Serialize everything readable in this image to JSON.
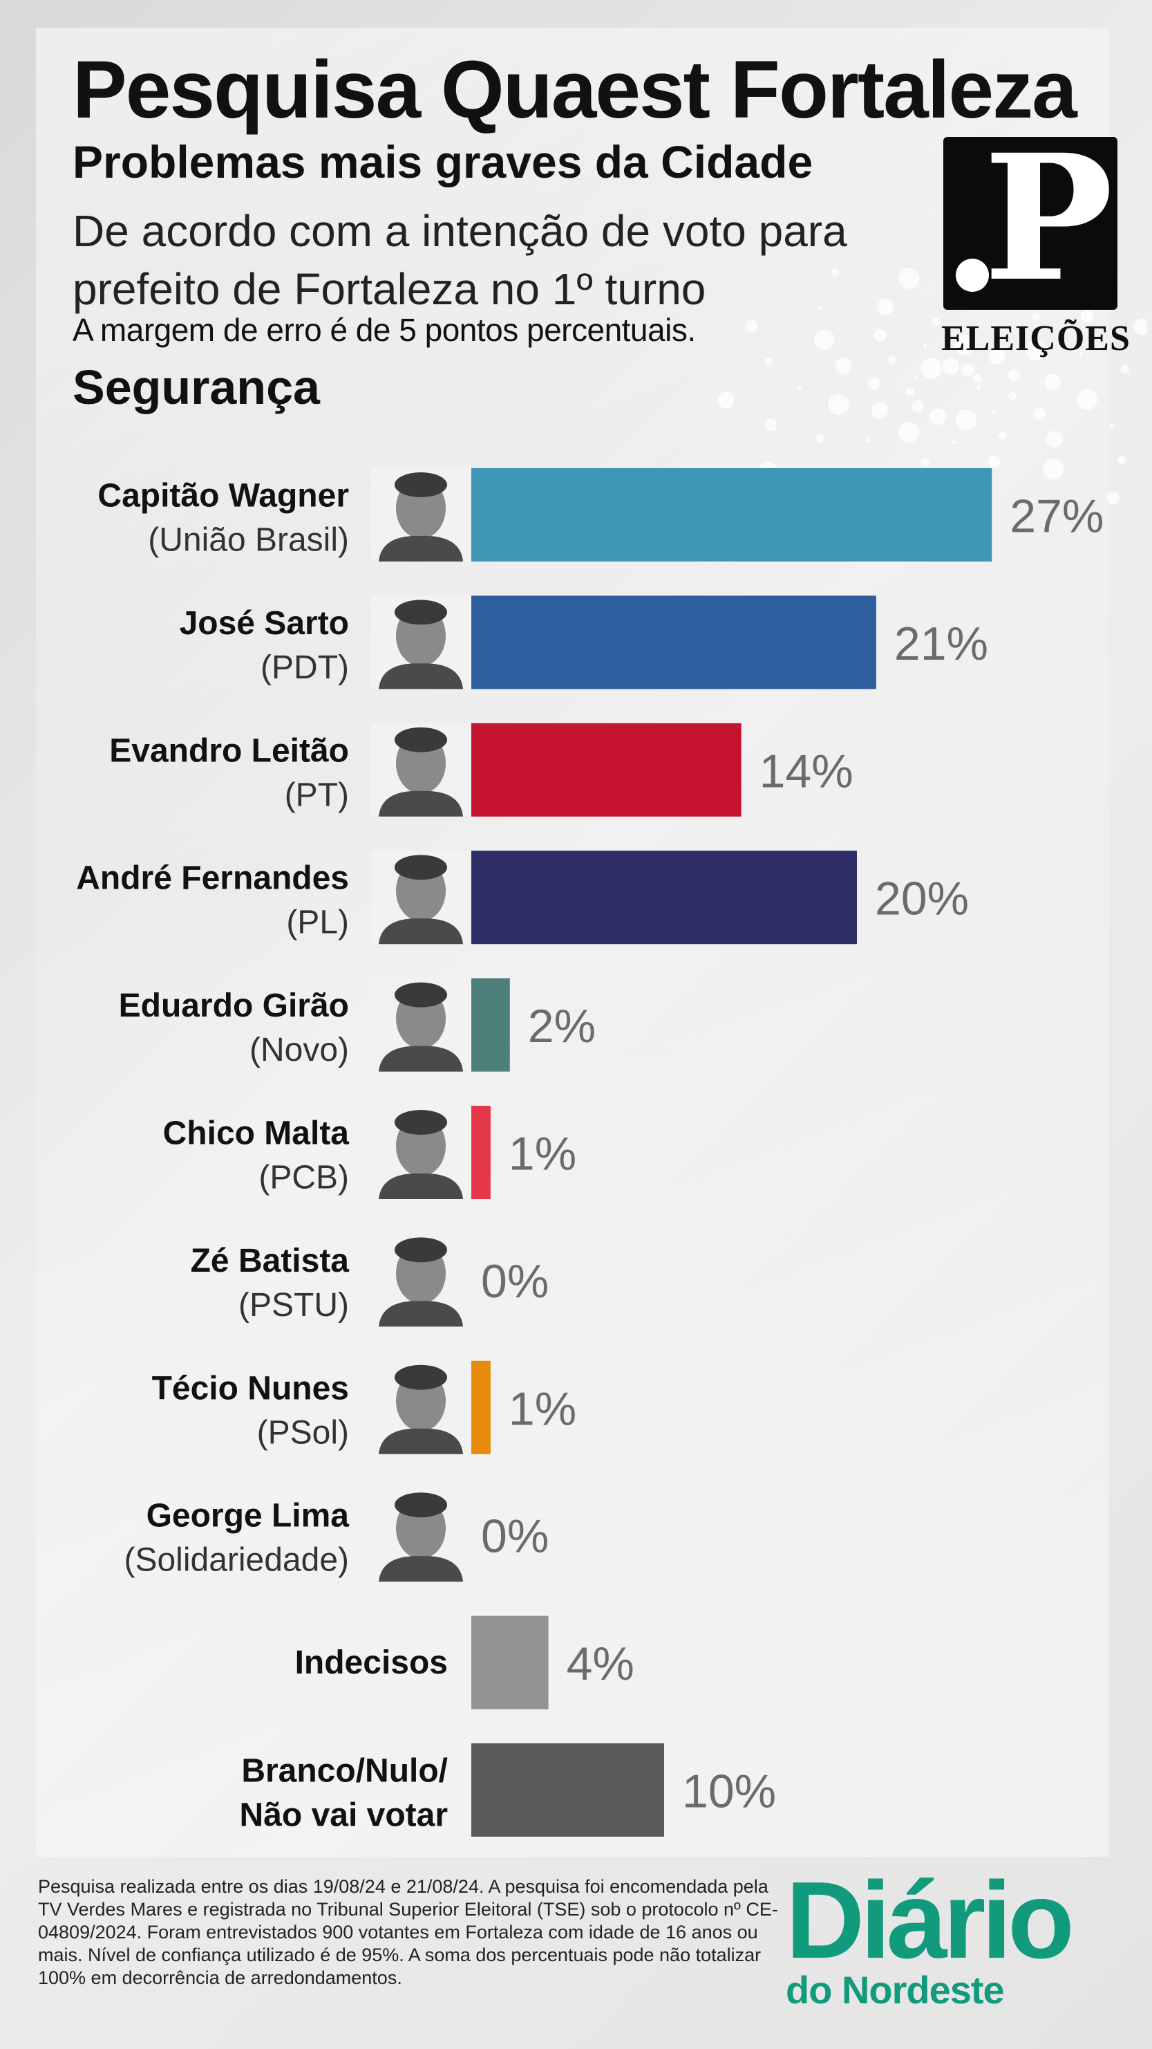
{
  "header": {
    "title": "Pesquisa Quaest Fortaleza",
    "subtitle": "Problemas mais graves da Cidade",
    "description": "De acordo com a intenção de voto para prefeito de Fortaleza no 1º turno",
    "margin_note": "A margem de erro é de 5 pontos percentuais.",
    "category": "Segurança"
  },
  "logo": {
    "letter": "P",
    "caption": "ELEIÇÕES"
  },
  "chart_data": {
    "type": "bar",
    "orientation": "horizontal",
    "title": "Segurança",
    "xlim": [
      0,
      27
    ],
    "grid": false,
    "legend": "none",
    "items": [
      {
        "name": "Capitão Wagner",
        "party": "(União Brasil)",
        "value": 27,
        "label": "27%",
        "color": "#3e97b6",
        "photo": true
      },
      {
        "name": "José Sarto",
        "party": "(PDT)",
        "value": 21,
        "label": "21%",
        "color": "#2e5e9d",
        "photo": true
      },
      {
        "name": "Evandro Leitão",
        "party": "(PT)",
        "value": 14,
        "label": "14%",
        "color": "#c4122f",
        "photo": true
      },
      {
        "name": "André Fernandes",
        "party": "(PL)",
        "value": 20,
        "label": "20%",
        "color": "#2f2d66",
        "photo": true
      },
      {
        "name": "Eduardo Girão",
        "party": "(Novo)",
        "value": 2,
        "label": "2%",
        "color": "#4d7f7b",
        "photo": true
      },
      {
        "name": "Chico Malta",
        "party": "(PCB)",
        "value": 1,
        "label": "1%",
        "color": "#e5374a",
        "photo": true
      },
      {
        "name": "Zé Batista",
        "party": "(PSTU)",
        "value": 0,
        "label": "0%",
        "color": "#999999",
        "photo": true
      },
      {
        "name": "Técio Nunes",
        "party": "(PSol)",
        "value": 1,
        "label": "1%",
        "color": "#e88a0c",
        "photo": true
      },
      {
        "name": "George Lima",
        "party": "(Solidariedade)",
        "value": 0,
        "label": "0%",
        "color": "#999999",
        "photo": true
      },
      {
        "name": "Indecisos",
        "party": "",
        "value": 4,
        "label": "4%",
        "color": "#939393",
        "photo": false
      },
      {
        "name": "Branco/Nulo/",
        "party": "Não vai votar",
        "value": 10,
        "label": "10%",
        "color": "#5a5a5a",
        "photo": false,
        "bold_second_line": true
      }
    ]
  },
  "footnote": "Pesquisa realizada entre os dias 19/08/24 e 21/08/24. A pesquisa foi encomendada pela TV Verdes Mares e registrada no Tribunal Superior Eleitoral (TSE) sob o protocolo nº CE-04809/2024. Foram entrevistados 900 votantes em Fortaleza com idade de 16 anos ou mais. Nível de confiança utilizado é de 95%. A soma dos percentuais pode não totalizar 100% em decorrência de arredondamentos.",
  "brand": {
    "main": "Diário",
    "sub": "do Nordeste",
    "color": "#129a7d"
  }
}
